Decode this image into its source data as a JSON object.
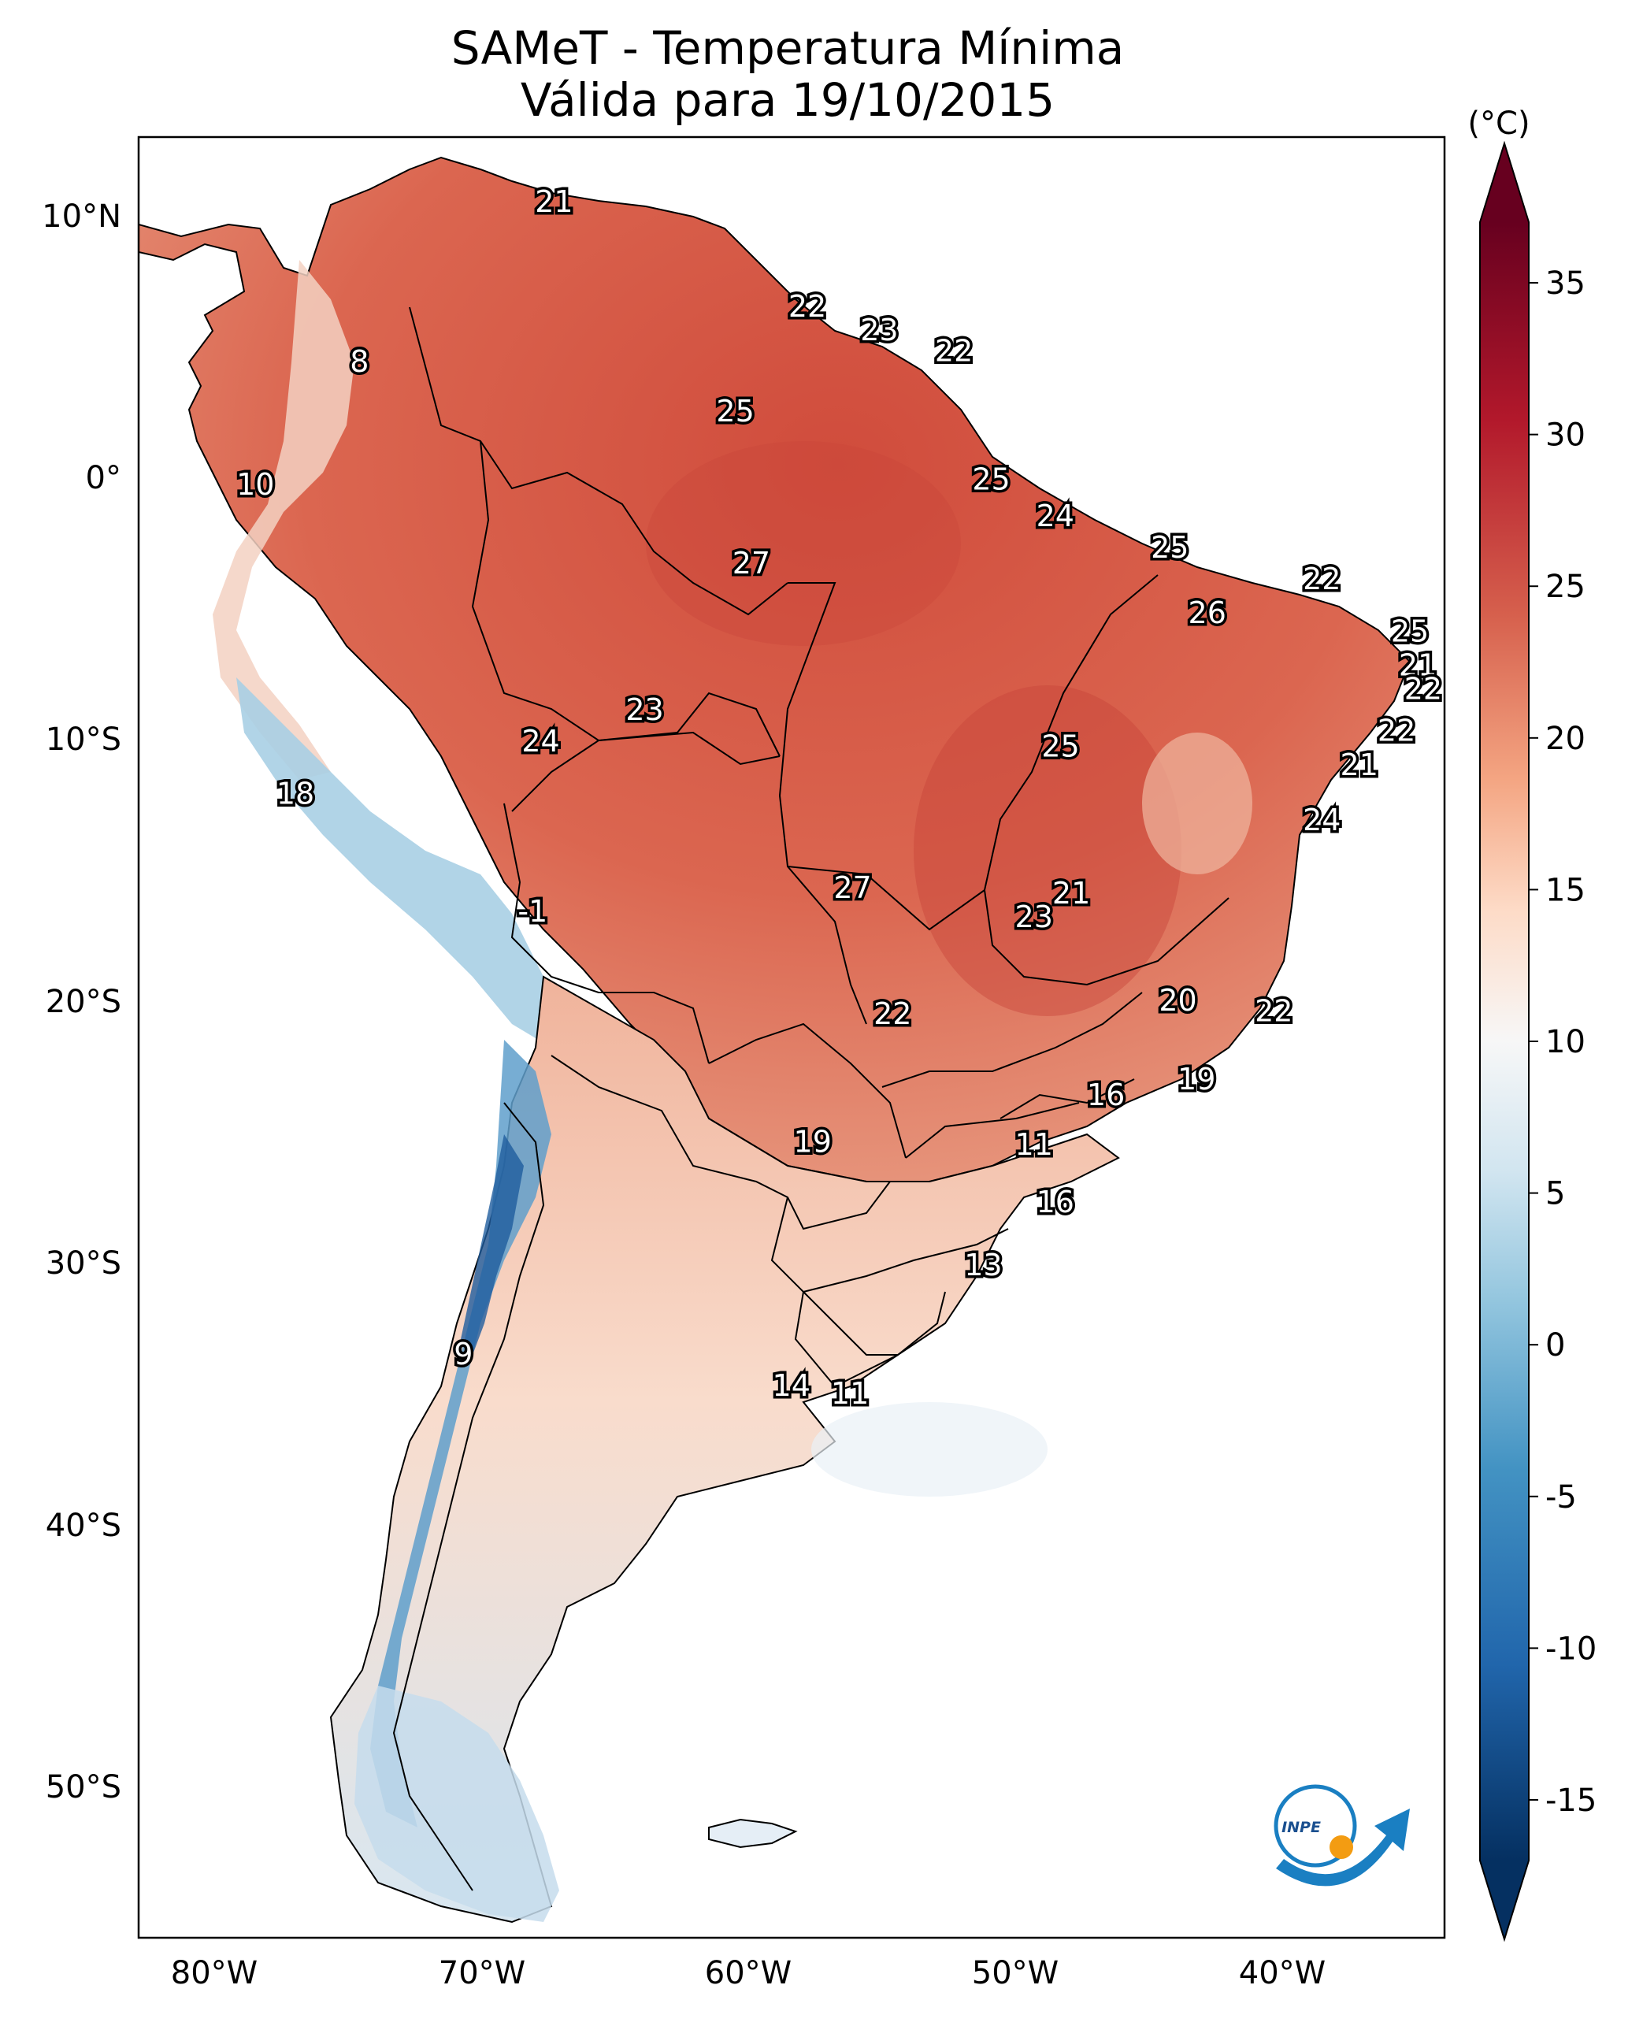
{
  "title": "SAMeT - Temperatura Mínima",
  "subtitle": "Válida para 19/10/2015",
  "map": {
    "lon_ticks": [
      "80°W",
      "70°W",
      "60°W",
      "50°W",
      "40°W"
    ],
    "lat_ticks": [
      "10°N",
      "0°",
      "10°S",
      "20°S",
      "30°S",
      "40°S",
      "50°S"
    ],
    "point_labels": [
      {
        "text": "21",
        "lon": -67.3,
        "lat": 10.6
      },
      {
        "text": "8",
        "lon": -74.6,
        "lat": 4.5
      },
      {
        "text": "10",
        "lon": -78.5,
        "lat": -0.2
      },
      {
        "text": "22",
        "lon": -57.8,
        "lat": 6.6
      },
      {
        "text": "23",
        "lon": -55.1,
        "lat": 5.7
      },
      {
        "text": "22",
        "lon": -52.3,
        "lat": 4.9
      },
      {
        "text": "25",
        "lon": -60.5,
        "lat": 2.6
      },
      {
        "text": "25",
        "lon": -50.9,
        "lat": 0.0
      },
      {
        "text": "24",
        "lon": -48.5,
        "lat": -1.4
      },
      {
        "text": "27",
        "lon": -59.9,
        "lat": -3.2
      },
      {
        "text": "25",
        "lon": -44.2,
        "lat": -2.6
      },
      {
        "text": "22",
        "lon": -38.5,
        "lat": -3.8
      },
      {
        "text": "26",
        "lon": -42.8,
        "lat": -5.1
      },
      {
        "text": "25",
        "lon": -35.2,
        "lat": -5.8
      },
      {
        "text": "21",
        "lon": -34.9,
        "lat": -7.1
      },
      {
        "text": "22",
        "lon": -34.7,
        "lat": -8.0
      },
      {
        "text": "22",
        "lon": -35.7,
        "lat": -9.6
      },
      {
        "text": "21",
        "lon": -37.1,
        "lat": -10.9
      },
      {
        "text": "23",
        "lon": -63.9,
        "lat": -8.8
      },
      {
        "text": "24",
        "lon": -67.8,
        "lat": -10.0
      },
      {
        "text": "25",
        "lon": -48.3,
        "lat": -10.2
      },
      {
        "text": "18",
        "lon": -77.0,
        "lat": -12.0
      },
      {
        "text": "24",
        "lon": -38.5,
        "lat": -13.0
      },
      {
        "text": "27",
        "lon": -56.1,
        "lat": -15.6
      },
      {
        "text": "21",
        "lon": -47.9,
        "lat": -15.8
      },
      {
        "text": "23",
        "lon": -49.3,
        "lat": -16.7
      },
      {
        "text": "-1",
        "lon": -68.1,
        "lat": -16.5
      },
      {
        "text": "20",
        "lon": -43.9,
        "lat": -19.9
      },
      {
        "text": "22",
        "lon": -40.3,
        "lat": -20.3
      },
      {
        "text": "22",
        "lon": -54.6,
        "lat": -20.4
      },
      {
        "text": "19",
        "lon": -43.2,
        "lat": -22.9
      },
      {
        "text": "16",
        "lon": -46.6,
        "lat": -23.5
      },
      {
        "text": "19",
        "lon": -57.6,
        "lat": -25.3
      },
      {
        "text": "11",
        "lon": -49.3,
        "lat": -25.4
      },
      {
        "text": "16",
        "lon": -48.5,
        "lat": -27.6
      },
      {
        "text": "13",
        "lon": -51.2,
        "lat": -30.0
      },
      {
        "text": "9",
        "lon": -70.7,
        "lat": -33.4
      },
      {
        "text": "14",
        "lon": -58.4,
        "lat": -34.6
      },
      {
        "text": "11",
        "lon": -56.2,
        "lat": -34.9
      }
    ]
  },
  "colorbar": {
    "unit": "(°C)",
    "ticks": [
      "35",
      "30",
      "25",
      "20",
      "15",
      "10",
      "5",
      "0",
      "-5",
      "-10",
      "-15"
    ],
    "min": -17,
    "max": 37,
    "colormap": "RdBu_r",
    "colors": [
      "#053061",
      "#2166ac",
      "#4393c3",
      "#92c5de",
      "#d1e5f0",
      "#f7f7f7",
      "#fddbc7",
      "#f4a582",
      "#d6604d",
      "#b2182b",
      "#67001f"
    ]
  },
  "logo": {
    "text": "INPE"
  }
}
